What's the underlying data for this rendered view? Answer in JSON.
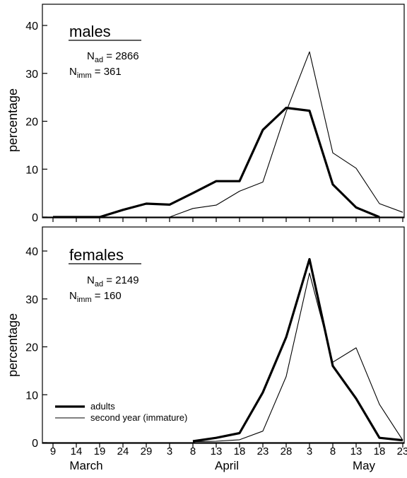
{
  "chart_data": [
    {
      "type": "line",
      "title": "males",
      "ylabel": "percentage",
      "ylim": [
        0,
        45
      ],
      "yticks": [
        0,
        10,
        20,
        30,
        40
      ],
      "n_ad_label": "N",
      "n_ad_sub": "ad",
      "n_ad_value": " = 2866",
      "n_imm_label": "N",
      "n_imm_sub": "imm",
      "n_imm_value": " = 361",
      "x": [
        "9 March",
        "14 March",
        "19 March",
        "24 March",
        "29 March",
        "3 April",
        "8 April",
        "13 April",
        "18 April",
        "23 April",
        "28 April",
        "3 May",
        "8 May",
        "13 May",
        "18 May",
        "23 May"
      ],
      "series": [
        {
          "name": "adults",
          "values": [
            0,
            0,
            0,
            1.5,
            2.8,
            2.6,
            5.0,
            7.5,
            7.5,
            18.2,
            22.8,
            22.2,
            6.8,
            2.0,
            0,
            null
          ]
        },
        {
          "name": "second year (immature)",
          "values": [
            null,
            null,
            null,
            null,
            null,
            0,
            1.8,
            2.5,
            5.4,
            7.3,
            22.0,
            34.5,
            13.4,
            10.2,
            2.8,
            1.0
          ]
        }
      ]
    },
    {
      "type": "line",
      "title": "females",
      "ylabel": "percentage",
      "ylim": [
        0,
        43
      ],
      "yticks": [
        0,
        10,
        20,
        30,
        40
      ],
      "n_ad_label": "N",
      "n_ad_sub": "ad",
      "n_ad_value": " = 2149",
      "n_imm_label": "N",
      "n_imm_sub": "imm",
      "n_imm_value": " = 160",
      "x": [
        "9 March",
        "14 March",
        "19 March",
        "24 March",
        "29 March",
        "3 April",
        "8 April",
        "13 April",
        "18 April",
        "23 April",
        "28 April",
        "3 May",
        "8 May",
        "13 May",
        "18 May",
        "23 May"
      ],
      "series": [
        {
          "name": "adults",
          "values": [
            null,
            null,
            null,
            null,
            null,
            null,
            0.3,
            1.0,
            2.0,
            10.5,
            22.0,
            38.3,
            16.0,
            9.2,
            1.0,
            0.5
          ]
        },
        {
          "name": "second year (immature)",
          "values": [
            null,
            null,
            null,
            null,
            null,
            null,
            0.2,
            0.3,
            0.6,
            2.4,
            13.8,
            35.4,
            16.8,
            19.8,
            8.0,
            0.5
          ]
        }
      ],
      "legend": {
        "placement": "bottom-left",
        "adults": "adults",
        "immature": "second year (immature)"
      }
    }
  ],
  "x_ticks": [
    "9",
    "14",
    "19",
    "24",
    "29",
    "3",
    "8",
    "13",
    "18",
    "23",
    "28",
    "3",
    "8",
    "13",
    "18",
    "23"
  ],
  "months": [
    "March",
    "April",
    "May"
  ]
}
